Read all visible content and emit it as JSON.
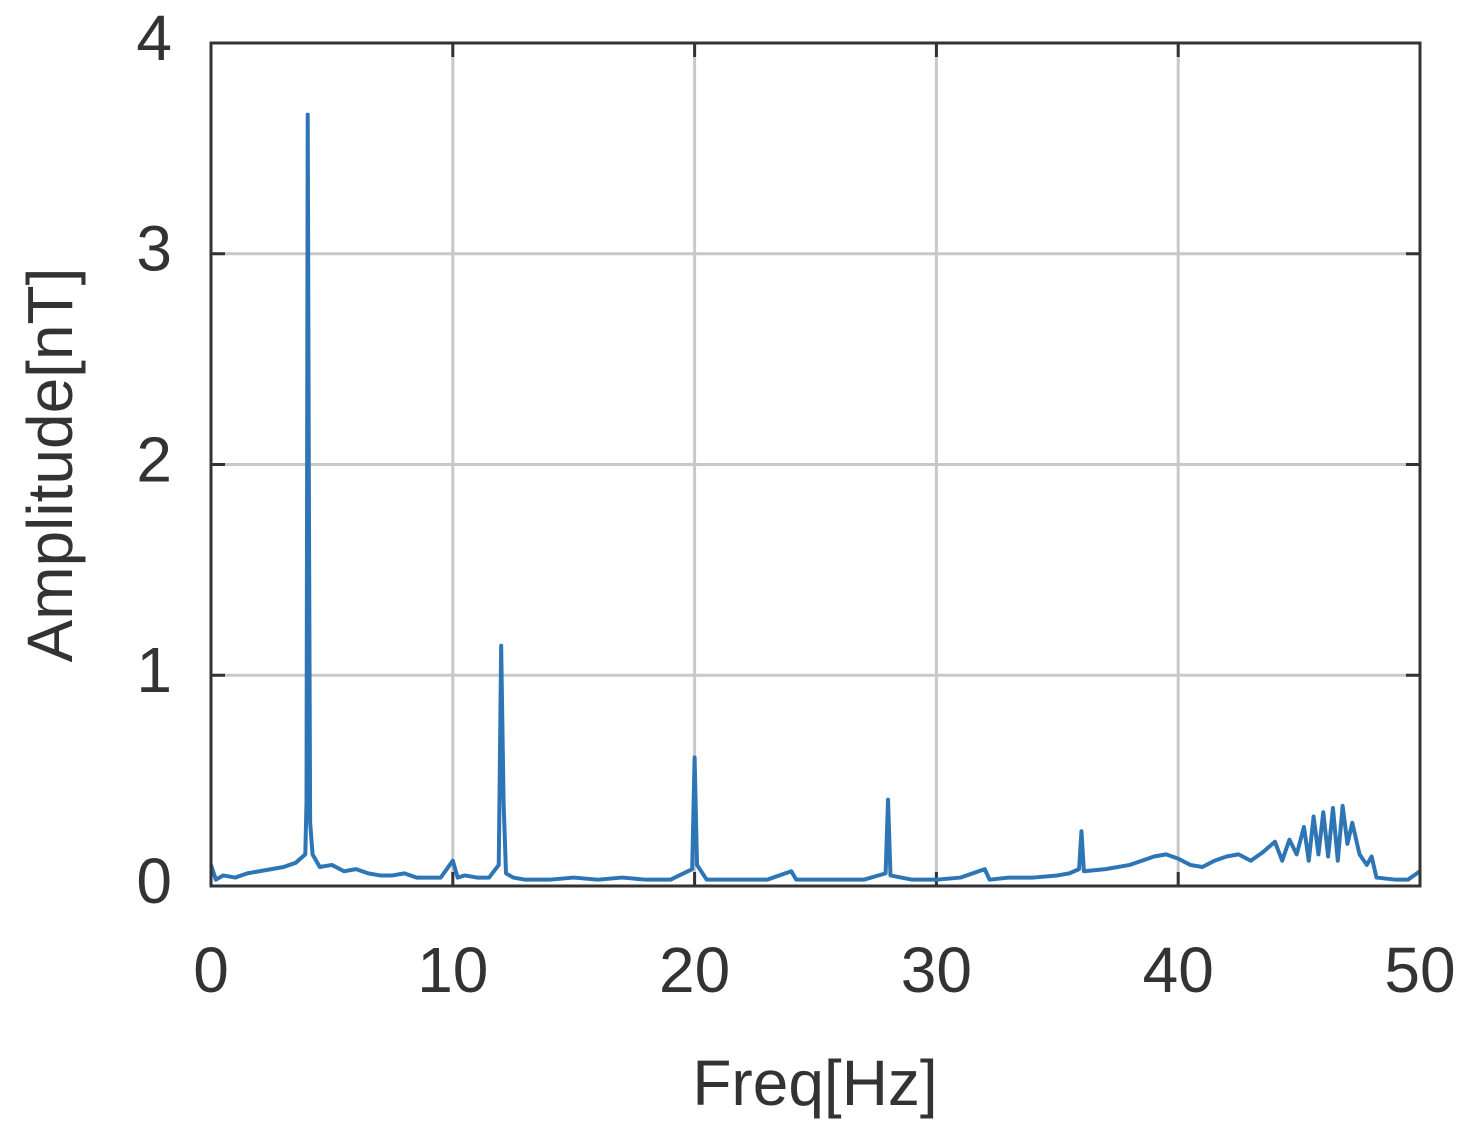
{
  "chart_data": {
    "type": "line",
    "xlabel": "Freq[Hz]",
    "ylabel": "Amplitude[nT]",
    "x": [
      0,
      0.2,
      0.5,
      1,
      1.5,
      2,
      2.5,
      3,
      3.5,
      3.9,
      3.95,
      4.0,
      4.05,
      4.1,
      4.2,
      4.5,
      5,
      5.5,
      6,
      6.5,
      7,
      7.5,
      8,
      8.5,
      9,
      9.5,
      10,
      10.2,
      10.5,
      11,
      11.5,
      11.9,
      12,
      12.1,
      12.2,
      12.5,
      13,
      14,
      15,
      16,
      17,
      18,
      19,
      19.9,
      20,
      20.1,
      20.5,
      21,
      22,
      23,
      24,
      24.2,
      25,
      26,
      27,
      27.9,
      28,
      28.1,
      29,
      30,
      31,
      32,
      32.2,
      33,
      34,
      35,
      35.5,
      35.9,
      36,
      36.1,
      37,
      38,
      39,
      39.5,
      40,
      40.5,
      41,
      41.5,
      42,
      42.5,
      43,
      43.5,
      44,
      44.3,
      44.6,
      44.9,
      45.2,
      45.4,
      45.6,
      45.8,
      46,
      46.2,
      46.4,
      46.6,
      46.8,
      47,
      47.2,
      47.5,
      47.8,
      48,
      48.2,
      49,
      49.5,
      50
    ],
    "values": [
      0.1,
      0.03,
      0.05,
      0.04,
      0.06,
      0.07,
      0.08,
      0.09,
      0.11,
      0.15,
      0.4,
      3.66,
      1.8,
      0.3,
      0.15,
      0.09,
      0.1,
      0.07,
      0.08,
      0.06,
      0.05,
      0.05,
      0.06,
      0.04,
      0.04,
      0.04,
      0.12,
      0.04,
      0.05,
      0.04,
      0.04,
      0.1,
      1.14,
      0.4,
      0.06,
      0.04,
      0.03,
      0.03,
      0.04,
      0.03,
      0.04,
      0.03,
      0.03,
      0.08,
      0.61,
      0.1,
      0.03,
      0.03,
      0.03,
      0.03,
      0.07,
      0.03,
      0.03,
      0.03,
      0.03,
      0.06,
      0.41,
      0.05,
      0.03,
      0.03,
      0.04,
      0.08,
      0.03,
      0.04,
      0.04,
      0.05,
      0.06,
      0.08,
      0.26,
      0.07,
      0.08,
      0.1,
      0.14,
      0.15,
      0.13,
      0.1,
      0.09,
      0.12,
      0.14,
      0.15,
      0.12,
      0.16,
      0.21,
      0.12,
      0.22,
      0.15,
      0.28,
      0.12,
      0.33,
      0.15,
      0.35,
      0.14,
      0.37,
      0.12,
      0.38,
      0.2,
      0.3,
      0.15,
      0.1,
      0.14,
      0.04,
      0.03,
      0.03,
      0.07
    ],
    "color": "#2e75b6",
    "xlim": [
      0,
      50
    ],
    "xticks": [
      0,
      10,
      20,
      30,
      40,
      50
    ],
    "ylim": [
      0,
      4
    ],
    "yticks": [
      0,
      1,
      2,
      3,
      4
    ],
    "grid": true
  }
}
